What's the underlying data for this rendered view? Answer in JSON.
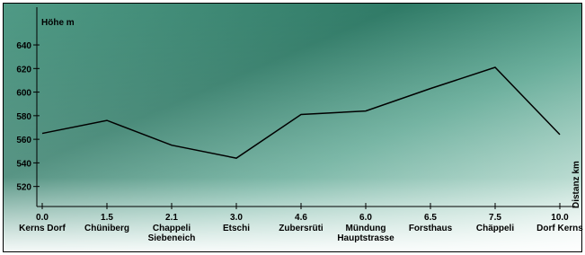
{
  "chart_data": {
    "type": "line",
    "y_label": "Höhe m",
    "x_label": "Distanz km",
    "categories": [
      "0.0",
      "1.5",
      "2.1",
      "3.0",
      "4.6",
      "6.0",
      "6.5",
      "7.5",
      "10.0"
    ],
    "places": [
      [
        "Kerns Dorf"
      ],
      [
        "Chüniberg"
      ],
      [
        "Chappeli",
        "Siebeneich"
      ],
      [
        "Etschi"
      ],
      [
        "Zubersrüti"
      ],
      [
        "Mündung",
        "Hauptstrasse"
      ],
      [
        "Forsthaus"
      ],
      [
        "Chäppeli"
      ],
      [
        "Dorf Kerns"
      ]
    ],
    "values": [
      565,
      576,
      555,
      544,
      581,
      584,
      603,
      621,
      564
    ],
    "color": "#000000",
    "ylim": [
      503,
      672
    ],
    "yticks": [
      520,
      540,
      560,
      580,
      600,
      620,
      640
    ]
  }
}
